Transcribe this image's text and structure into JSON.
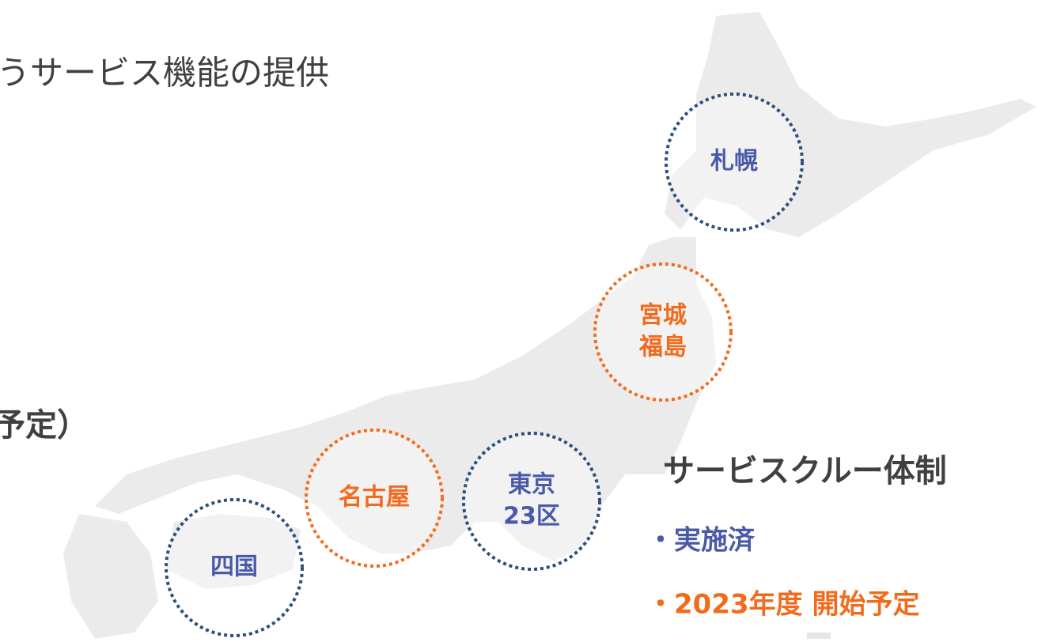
{
  "title": "うサービス機能の提供",
  "subtitle": "予定）",
  "regions": [
    {
      "lines": [
        "札幌"
      ],
      "color": "#2c4f7c",
      "text_color": "#4a5aa8"
    },
    {
      "lines": [
        "宮城",
        "福島"
      ],
      "color": "#f26b1d",
      "text_color": "#f26b1d"
    },
    {
      "lines": [
        "名古屋"
      ],
      "color": "#f26b1d",
      "text_color": "#f26b1d"
    },
    {
      "lines": [
        "東京",
        "23区"
      ],
      "color": "#2c4f7c",
      "text_color": "#4a5aa8"
    },
    {
      "lines": [
        "四国"
      ],
      "color": "#2c4f7c",
      "text_color": "#4a5aa8"
    }
  ],
  "legend": {
    "title": "サービスクルー体制",
    "items": [
      {
        "label": "・実施済",
        "color": "#4a5aa8"
      },
      {
        "label": "・2023年度 開始予定",
        "color": "#f26b1d"
      }
    ]
  }
}
